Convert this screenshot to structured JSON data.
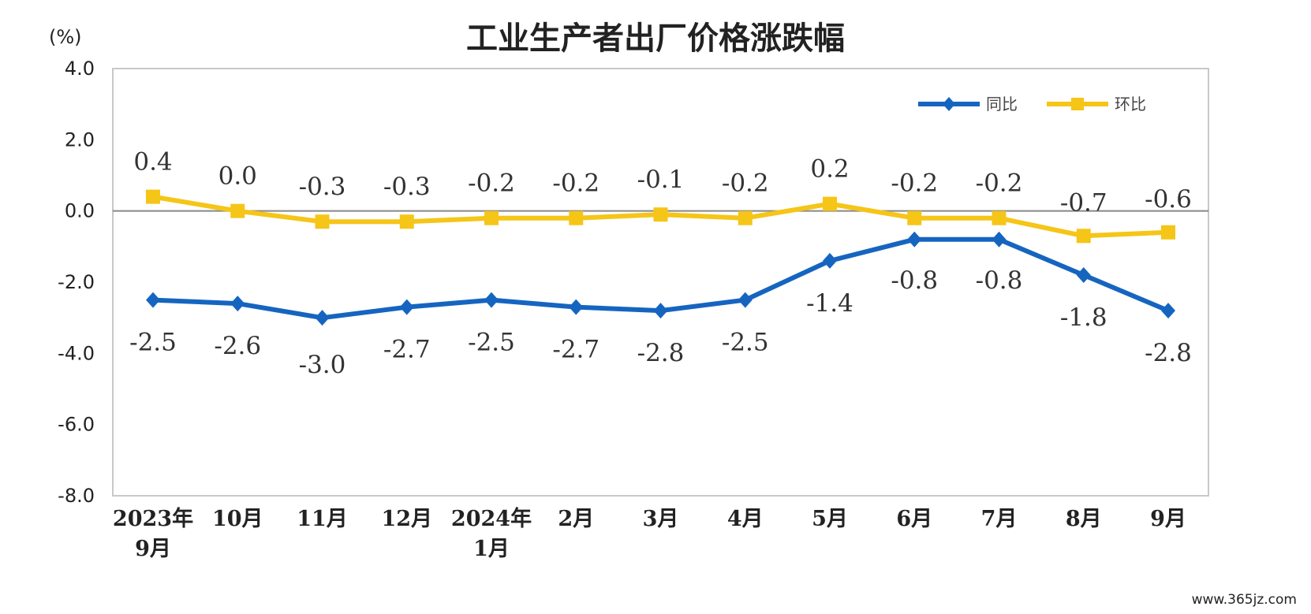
{
  "chart_data": {
    "type": "line",
    "title": "工业生产者出厂价格涨跌幅",
    "unit": "(%)",
    "categories": [
      [
        "2023年",
        "9月"
      ],
      [
        "10月"
      ],
      [
        "11月"
      ],
      [
        "12月"
      ],
      [
        "2024年",
        "1月"
      ],
      [
        "2月"
      ],
      [
        "3月"
      ],
      [
        "4月"
      ],
      [
        "5月"
      ],
      [
        "6月"
      ],
      [
        "7月"
      ],
      [
        "8月"
      ],
      [
        "9月"
      ]
    ],
    "ylim": [
      -8.0,
      4.0
    ],
    "yticks": [
      "4.0",
      "2.0",
      "0.0",
      "-2.0",
      "-4.0",
      "-6.0",
      "-8.0"
    ],
    "legend_position": "top-right",
    "series": [
      {
        "name": "同比",
        "color": "#1565c0",
        "marker": "diamond",
        "values": [
          -2.5,
          -2.6,
          -3.0,
          -2.7,
          -2.5,
          -2.7,
          -2.8,
          -2.5,
          -1.4,
          -0.8,
          -0.8,
          -1.8,
          -2.8
        ],
        "labels": [
          "-2.5",
          "-2.6",
          "-3.0",
          "-2.7",
          "-2.5",
          "-2.7",
          "-2.8",
          "-2.5",
          "-1.4",
          "-0.8",
          "-0.8",
          "-1.8",
          "-2.8"
        ]
      },
      {
        "name": "环比",
        "color": "#f5c518",
        "marker": "square",
        "values": [
          0.4,
          0.0,
          -0.3,
          -0.3,
          -0.2,
          -0.2,
          -0.1,
          -0.2,
          0.2,
          -0.2,
          -0.2,
          -0.7,
          -0.6
        ],
        "labels": [
          "0.4",
          "0.0",
          "-0.3",
          "-0.3",
          "-0.2",
          "-0.2",
          "-0.1",
          "-0.2",
          "0.2",
          "-0.2",
          "-0.2",
          "-0.7",
          "-0.6"
        ]
      }
    ]
  },
  "watermark": "www.365jz.com"
}
